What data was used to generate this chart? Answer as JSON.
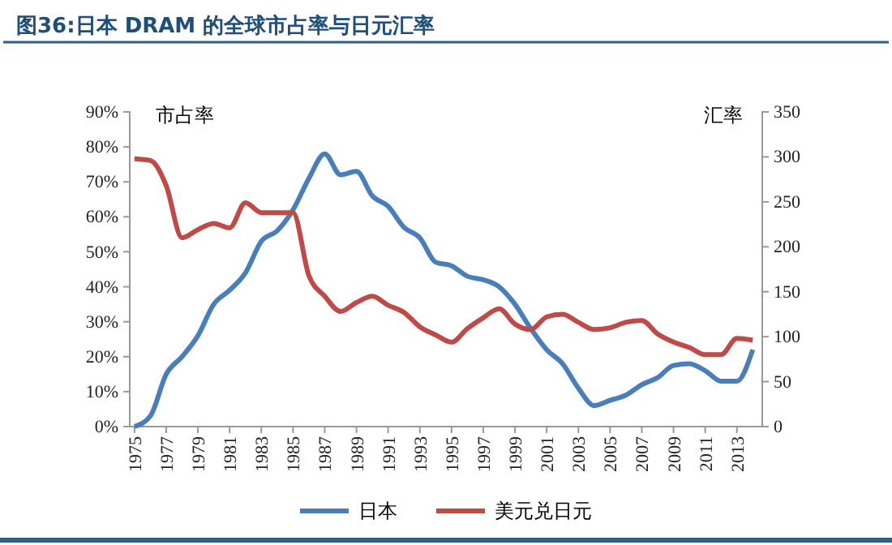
{
  "chart_data": {
    "type": "line",
    "title": "图36:日本 DRAM 的全球市占率与日元汇率",
    "ylabel": "市占率",
    "y2label": "汇率",
    "x": [
      1975,
      1976,
      1977,
      1978,
      1979,
      1980,
      1981,
      1982,
      1983,
      1984,
      1985,
      1986,
      1987,
      1988,
      1989,
      1990,
      1991,
      1992,
      1993,
      1994,
      1995,
      1996,
      1997,
      1998,
      1999,
      2000,
      2001,
      2002,
      2003,
      2004,
      2005,
      2006,
      2007,
      2008,
      2009,
      2010,
      2011,
      2012,
      2013,
      2014
    ],
    "xlim": [
      1974.7,
      2014.6
    ],
    "xticks": [
      1975,
      1977,
      1979,
      1981,
      1983,
      1985,
      1987,
      1989,
      1991,
      1993,
      1995,
      1997,
      1999,
      2001,
      2003,
      2005,
      2007,
      2009,
      2011,
      2013
    ],
    "ylim": [
      0,
      90
    ],
    "yticks": [
      {
        "value": 0,
        "label": "0%"
      },
      {
        "value": 10,
        "label": "10%"
      },
      {
        "value": 20,
        "label": "20%"
      },
      {
        "value": 30,
        "label": "30%"
      },
      {
        "value": 40,
        "label": "40%"
      },
      {
        "value": 50,
        "label": "50%"
      },
      {
        "value": 60,
        "label": "60%"
      },
      {
        "value": 70,
        "label": "70%"
      },
      {
        "value": 80,
        "label": "80%"
      },
      {
        "value": 90,
        "label": "90%"
      }
    ],
    "y2lim": [
      0,
      350
    ],
    "y2ticks": [
      0,
      50,
      100,
      150,
      200,
      250,
      300,
      350
    ],
    "series": [
      {
        "name": "日本",
        "color": "#4a7ebb",
        "values": [
          0,
          3,
          15,
          20,
          26,
          35,
          39,
          44,
          53,
          56,
          62,
          71,
          78,
          72,
          73,
          66,
          63,
          57,
          54,
          47,
          46,
          43,
          42,
          40,
          35,
          28,
          22,
          18,
          11,
          6,
          7.5,
          9,
          12,
          14,
          17.5,
          18,
          16,
          13,
          13,
          22
        ]
      },
      {
        "name": "美元兑日元",
        "color": "#be4b48",
        "axis": "y2",
        "values": [
          298,
          296,
          268,
          210,
          219,
          226,
          221,
          249,
          238,
          238,
          238,
          168,
          145,
          128,
          138,
          145,
          135,
          127,
          111,
          102,
          94,
          109,
          121,
          131,
          114,
          108,
          122,
          125,
          116,
          108,
          110,
          116,
          118,
          103,
          94,
          88,
          80,
          80,
          98,
          96
        ]
      }
    ],
    "legend": "bottom",
    "grid": false,
    "marker": "none",
    "line_style": "solid"
  }
}
